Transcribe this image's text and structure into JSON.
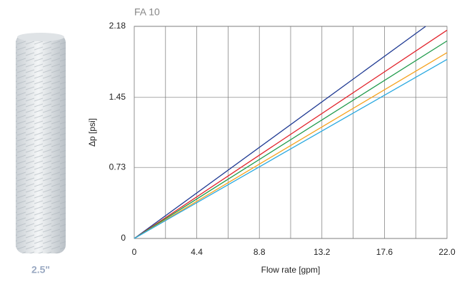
{
  "product_label": "2.5\"",
  "chart_data": {
    "type": "line",
    "title": "FA 10",
    "x_label": "Flow rate [gpm]",
    "y_label": "Δp [psi]",
    "xlim": [
      0,
      22
    ],
    "ylim": [
      0,
      2.18
    ],
    "xticks": [
      0,
      4.4,
      8.8,
      13.2,
      17.6,
      {
        "value": 22,
        "label": "22.0"
      }
    ],
    "x_gridlines": [
      2.2,
      4.4,
      6.6,
      8.8,
      11,
      13.2,
      15.4,
      17.6,
      19.8
    ],
    "yticks": [
      0,
      0.73,
      1.45,
      2.18
    ],
    "grid": true,
    "series": [
      {
        "name": "dark blue",
        "color": "#1f3a93",
        "x": [
          0,
          20.5
        ],
        "values": [
          0,
          2.18
        ]
      },
      {
        "name": "red",
        "color": "#e2232b",
        "x": [
          0,
          22
        ],
        "values": [
          0,
          2.14
        ]
      },
      {
        "name": "green",
        "color": "#1e9a4a",
        "x": [
          0,
          22
        ],
        "values": [
          0,
          2.03
        ]
      },
      {
        "name": "orange",
        "color": "#f5a21e",
        "x": [
          0,
          22
        ],
        "values": [
          0,
          1.91
        ]
      },
      {
        "name": "cyan",
        "color": "#2aa9e0",
        "x": [
          0,
          22
        ],
        "values": [
          0,
          1.84
        ]
      }
    ]
  }
}
